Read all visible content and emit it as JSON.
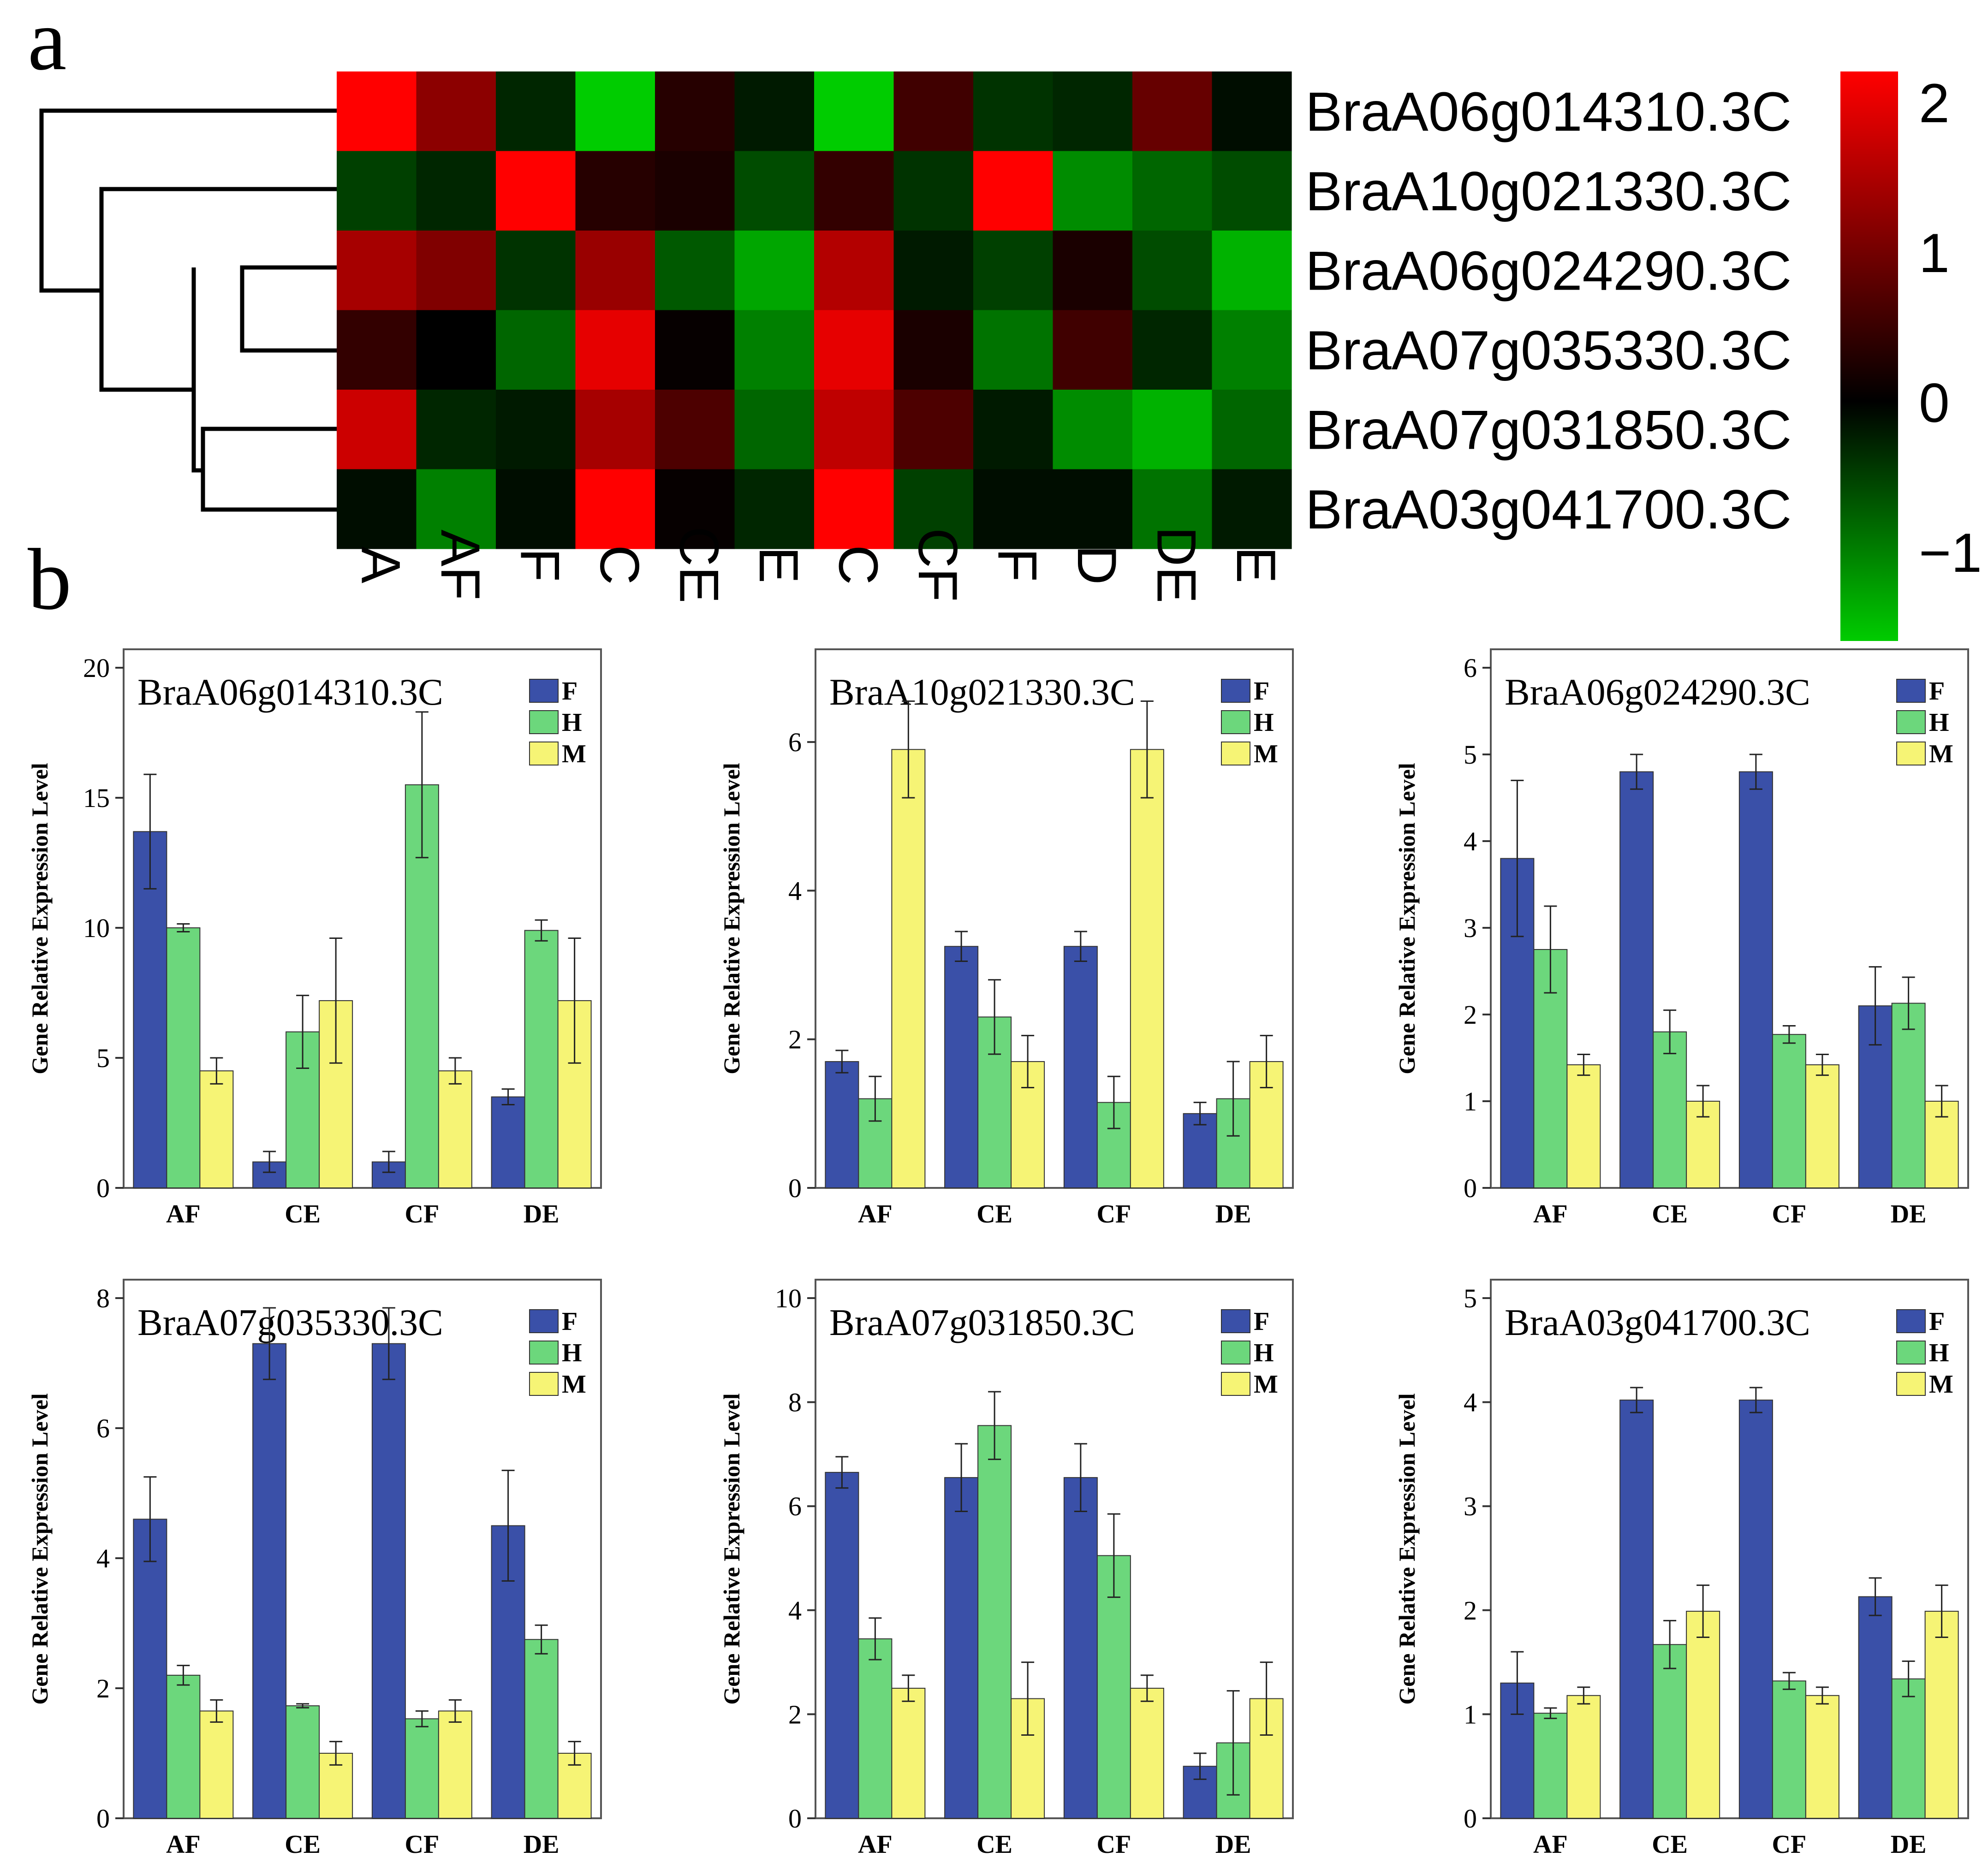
{
  "panel_labels": {
    "a": "a",
    "b": "b"
  },
  "colors": {
    "F": "#3a50a8",
    "H": "#6cd77c",
    "M": "#f6f475",
    "heat_high": "#ff0000",
    "heat_mid": "#000000",
    "heat_low": "#00cc00"
  },
  "chart_data": [
    {
      "type": "heatmap",
      "rows": [
        "BraA06g014310.3C",
        "BraA10g021330.3C",
        "BraA06g024290.3C",
        "BraA07g035330.3C",
        "BraA07g031850.3C",
        "BraA03g041700.3C"
      ],
      "columns": [
        "A",
        "AF",
        "F",
        "C",
        "CE",
        "E",
        "C",
        "CF",
        "F",
        "D",
        "DE",
        "E"
      ],
      "values": [
        [
          2.0,
          1.1,
          -0.3,
          -1.6,
          0.3,
          -0.2,
          -1.6,
          0.5,
          -0.4,
          -0.3,
          0.8,
          -0.1
        ],
        [
          -0.5,
          -0.3,
          2.0,
          0.3,
          0.2,
          -0.6,
          0.4,
          -0.4,
          2.0,
          -1.1,
          -0.8,
          -0.6
        ],
        [
          1.3,
          1.0,
          -0.4,
          1.2,
          -0.7,
          -1.3,
          1.4,
          -0.2,
          -0.5,
          0.2,
          -0.6,
          -1.4
        ],
        [
          0.4,
          0.0,
          -0.8,
          1.8,
          0.05,
          -1.0,
          1.8,
          0.2,
          -0.9,
          0.5,
          -0.3,
          -1.0
        ],
        [
          1.6,
          -0.3,
          -0.2,
          1.3,
          0.6,
          -0.8,
          1.5,
          0.6,
          -0.2,
          -1.1,
          -1.4,
          -0.8
        ],
        [
          -0.1,
          -1.0,
          -0.1,
          2.0,
          0.05,
          -0.3,
          2.0,
          -0.5,
          -0.1,
          -0.1,
          -0.9,
          -0.2
        ]
      ],
      "colorbar": {
        "range": [
          -1.6,
          2.2
        ],
        "ticks": [
          2,
          1,
          0,
          -1
        ],
        "tick_labels": [
          "2",
          "1",
          "0",
          "−1"
        ]
      }
    },
    {
      "type": "bar",
      "title": "BraA06g014310.3C",
      "ylabel": "Gene Relative Expression Level",
      "categories": [
        "AF",
        "CE",
        "CF",
        "DE"
      ],
      "ylim": [
        0,
        20
      ],
      "yticks": [
        0,
        5,
        10,
        15,
        20
      ],
      "series": [
        {
          "name": "F",
          "values": [
            13.7,
            1.0,
            1.0,
            3.5
          ],
          "errors": [
            2.2,
            0.4,
            0.4,
            0.3
          ]
        },
        {
          "name": "H",
          "values": [
            10.0,
            6.0,
            15.5,
            9.9
          ],
          "errors": [
            0.15,
            1.4,
            2.8,
            0.4
          ]
        },
        {
          "name": "M",
          "values": [
            4.5,
            7.2,
            4.5,
            7.2
          ],
          "errors": [
            0.5,
            2.4,
            0.5,
            2.4
          ]
        }
      ]
    },
    {
      "type": "bar",
      "title": "BraA10g021330.3C",
      "ylabel": "Gene Relative Expression Level",
      "categories": [
        "AF",
        "CE",
        "CF",
        "DE"
      ],
      "ylim": [
        0,
        7
      ],
      "yticks": [
        0,
        2,
        4,
        6
      ],
      "series": [
        {
          "name": "F",
          "values": [
            1.7,
            3.25,
            3.25,
            1.0
          ],
          "errors": [
            0.15,
            0.2,
            0.2,
            0.15
          ]
        },
        {
          "name": "H",
          "values": [
            1.2,
            2.3,
            1.15,
            1.2
          ],
          "errors": [
            0.3,
            0.5,
            0.35,
            0.5
          ]
        },
        {
          "name": "M",
          "values": [
            5.9,
            1.7,
            5.9,
            1.7
          ],
          "errors": [
            0.65,
            0.35,
            0.65,
            0.35
          ]
        }
      ]
    },
    {
      "type": "bar",
      "title": "BraA06g024290.3C",
      "ylabel": "Gene Relative Expression Level",
      "categories": [
        "AF",
        "CE",
        "CF",
        "DE"
      ],
      "ylim": [
        0,
        6
      ],
      "yticks": [
        0,
        1,
        2,
        3,
        4,
        5,
        6
      ],
      "series": [
        {
          "name": "F",
          "values": [
            3.8,
            4.8,
            4.8,
            2.1
          ],
          "errors": [
            0.9,
            0.2,
            0.2,
            0.45
          ]
        },
        {
          "name": "H",
          "values": [
            2.75,
            1.8,
            1.77,
            2.13
          ],
          "errors": [
            0.5,
            0.25,
            0.1,
            0.3
          ]
        },
        {
          "name": "M",
          "values": [
            1.42,
            1.0,
            1.42,
            1.0
          ],
          "errors": [
            0.12,
            0.18,
            0.12,
            0.18
          ]
        }
      ]
    },
    {
      "type": "bar",
      "title": "BraA07g035330.3C",
      "ylabel": "Gene Relative Expression Level",
      "categories": [
        "AF",
        "CE",
        "CF",
        "DE"
      ],
      "ylim": [
        0,
        8
      ],
      "yticks": [
        0,
        2,
        4,
        6,
        8
      ],
      "series": [
        {
          "name": "F",
          "values": [
            4.6,
            7.3,
            7.3,
            4.5
          ],
          "errors": [
            0.65,
            0.55,
            0.55,
            0.85
          ]
        },
        {
          "name": "H",
          "values": [
            2.2,
            1.73,
            1.53,
            2.75
          ],
          "errors": [
            0.15,
            0.03,
            0.12,
            0.22
          ]
        },
        {
          "name": "M",
          "values": [
            1.65,
            1.0,
            1.65,
            1.0
          ],
          "errors": [
            0.17,
            0.18,
            0.17,
            0.18
          ]
        }
      ]
    },
    {
      "type": "bar",
      "title": "BraA07g031850.3C",
      "ylabel": "Gene Relative Expression Level",
      "categories": [
        "AF",
        "CE",
        "CF",
        "DE"
      ],
      "ylim": [
        0,
        10
      ],
      "yticks": [
        0,
        2,
        4,
        6,
        8,
        10
      ],
      "series": [
        {
          "name": "F",
          "values": [
            6.65,
            6.55,
            6.55,
            1.0
          ],
          "errors": [
            0.3,
            0.65,
            0.65,
            0.25
          ]
        },
        {
          "name": "H",
          "values": [
            3.45,
            7.55,
            5.05,
            1.45
          ],
          "errors": [
            0.4,
            0.65,
            0.8,
            1.0
          ]
        },
        {
          "name": "M",
          "values": [
            2.5,
            2.3,
            2.5,
            2.3
          ],
          "errors": [
            0.25,
            0.7,
            0.25,
            0.7
          ]
        }
      ]
    },
    {
      "type": "bar",
      "title": "BraA03g041700.3C",
      "ylabel": "Gene Relative Expression Level",
      "categories": [
        "AF",
        "CE",
        "CF",
        "DE"
      ],
      "ylim": [
        0,
        5
      ],
      "yticks": [
        0,
        1,
        2,
        3,
        4,
        5
      ],
      "series": [
        {
          "name": "F",
          "values": [
            1.3,
            4.02,
            4.02,
            2.13
          ],
          "errors": [
            0.3,
            0.12,
            0.12,
            0.18
          ]
        },
        {
          "name": "H",
          "values": [
            1.01,
            1.67,
            1.32,
            1.34
          ],
          "errors": [
            0.05,
            0.23,
            0.08,
            0.17
          ]
        },
        {
          "name": "M",
          "values": [
            1.18,
            1.99,
            1.18,
            1.99
          ],
          "errors": [
            0.08,
            0.25,
            0.08,
            0.25
          ]
        }
      ]
    }
  ]
}
